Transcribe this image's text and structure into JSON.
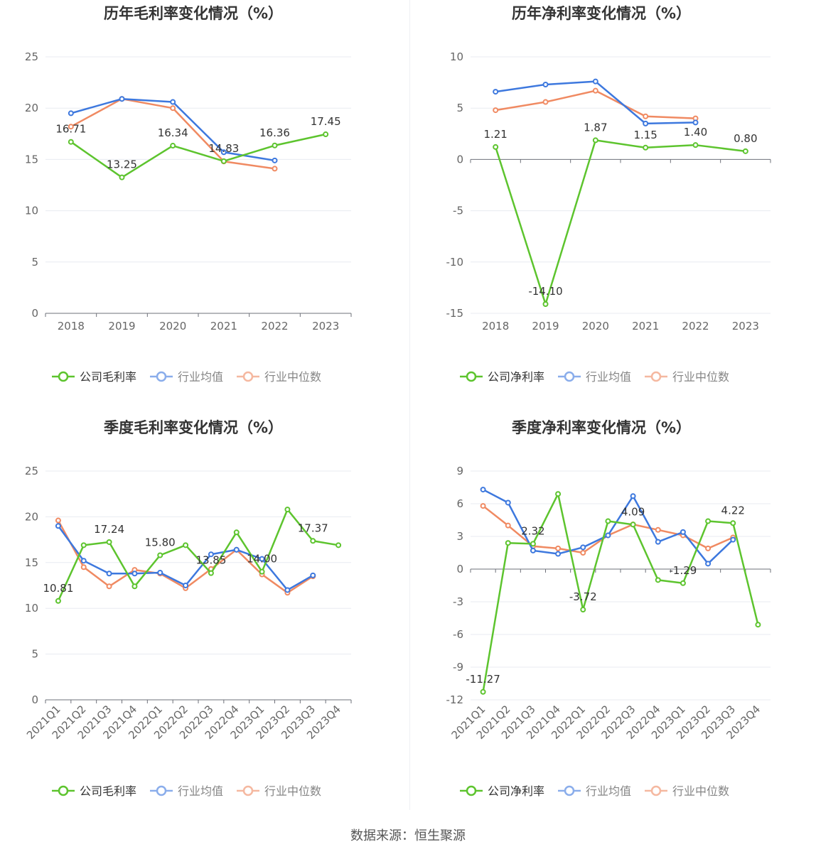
{
  "footer": {
    "source": "数据来源：恒生聚源"
  },
  "colors": {
    "company": "#5dc42e",
    "avg": "#3d78de",
    "median": "#f08a62",
    "grid": "#e8ebf1",
    "axis": "#6e7079"
  },
  "chart_data": [
    {
      "type": "line",
      "title": "历年毛利率变化情况（%）",
      "categories": [
        "2018",
        "2019",
        "2020",
        "2021",
        "2022",
        "2023"
      ],
      "ylim": [
        0,
        25
      ],
      "yticks": [
        0,
        5,
        10,
        15,
        20,
        25
      ],
      "grid": true,
      "legend": "bottom",
      "series": [
        {
          "name": "公司毛利率",
          "role": "company",
          "values": [
            16.71,
            13.25,
            16.34,
            14.83,
            16.36,
            17.45
          ],
          "labels": [
            "16.71",
            "13.25",
            "16.34",
            "14.83",
            "16.36",
            "17.45"
          ]
        },
        {
          "name": "行业均值",
          "role": "avg",
          "values": [
            19.5,
            20.9,
            20.6,
            15.7,
            14.9,
            null
          ]
        },
        {
          "name": "行业中位数",
          "role": "median",
          "values": [
            18.2,
            20.9,
            20.0,
            14.8,
            14.1,
            null
          ]
        }
      ]
    },
    {
      "type": "line",
      "title": "历年净利率变化情况（%）",
      "categories": [
        "2018",
        "2019",
        "2020",
        "2021",
        "2022",
        "2023"
      ],
      "ylim": [
        -15,
        10
      ],
      "yticks": [
        -15,
        -10,
        -5,
        0,
        5,
        10
      ],
      "grid": true,
      "legend": "bottom",
      "series": [
        {
          "name": "公司净利率",
          "role": "company",
          "values": [
            1.21,
            -14.1,
            1.87,
            1.15,
            1.4,
            0.8
          ],
          "labels": [
            "1.21",
            "-14.10",
            "1.87",
            "1.15",
            "1.40",
            "0.80"
          ]
        },
        {
          "name": "行业均值",
          "role": "avg",
          "values": [
            6.6,
            7.3,
            7.6,
            3.5,
            3.6,
            null
          ]
        },
        {
          "name": "行业中位数",
          "role": "median",
          "values": [
            4.8,
            5.6,
            6.7,
            4.2,
            4.0,
            null
          ]
        }
      ]
    },
    {
      "type": "line",
      "title": "季度毛利率变化情况（%）",
      "categories": [
        "2021Q1",
        "2021Q2",
        "2021Q3",
        "2021Q4",
        "2022Q1",
        "2022Q2",
        "2022Q3",
        "2022Q4",
        "2023Q1",
        "2023Q2",
        "2023Q3",
        "2023Q4"
      ],
      "ylim": [
        0,
        25
      ],
      "yticks": [
        0,
        5,
        10,
        15,
        20,
        25
      ],
      "grid": true,
      "legend": "bottom",
      "series": [
        {
          "name": "公司毛利率",
          "role": "company",
          "values": [
            10.81,
            16.9,
            17.24,
            12.4,
            15.8,
            16.9,
            13.85,
            18.3,
            14.0,
            20.8,
            17.37,
            16.9
          ],
          "labels": [
            "10.81",
            "",
            "17.24",
            "",
            "15.80",
            "",
            "13.85",
            "",
            "14.00",
            "",
            "17.37",
            ""
          ]
        },
        {
          "name": "行业均值",
          "role": "avg",
          "values": [
            19.0,
            15.2,
            13.8,
            13.8,
            13.9,
            12.5,
            15.9,
            16.4,
            15.4,
            12.0,
            13.6,
            null
          ]
        },
        {
          "name": "行业中位数",
          "role": "median",
          "values": [
            19.6,
            14.5,
            12.4,
            14.2,
            13.8,
            12.2,
            14.3,
            16.4,
            13.7,
            11.7,
            13.5,
            null
          ]
        }
      ]
    },
    {
      "type": "line",
      "title": "季度净利率变化情况（%）",
      "categories": [
        "2021Q1",
        "2021Q2",
        "2021Q3",
        "2021Q4",
        "2022Q1",
        "2022Q2",
        "2022Q3",
        "2022Q4",
        "2023Q1",
        "2023Q2",
        "2023Q3",
        "2023Q4"
      ],
      "ylim": [
        -12,
        9
      ],
      "yticks": [
        -12,
        -9,
        -6,
        -3,
        0,
        3,
        6,
        9
      ],
      "grid": true,
      "legend": "bottom",
      "series": [
        {
          "name": "公司净利率",
          "role": "company",
          "values": [
            -11.27,
            2.4,
            2.32,
            6.9,
            -3.72,
            4.4,
            4.09,
            -1.0,
            -1.29,
            4.4,
            4.22,
            -5.1
          ],
          "labels": [
            "-11.27",
            "",
            "2.32",
            "",
            "-3.72",
            "",
            "4.09",
            "",
            "-1.29",
            "",
            "4.22",
            ""
          ]
        },
        {
          "name": "行业均值",
          "role": "avg",
          "values": [
            7.3,
            6.1,
            1.7,
            1.4,
            2.0,
            3.1,
            6.7,
            2.5,
            3.4,
            0.5,
            2.7,
            null
          ]
        },
        {
          "name": "行业中位数",
          "role": "median",
          "values": [
            5.8,
            4.0,
            2.1,
            1.9,
            1.5,
            3.1,
            4.1,
            3.6,
            3.1,
            1.9,
            2.9,
            null
          ]
        }
      ]
    }
  ]
}
